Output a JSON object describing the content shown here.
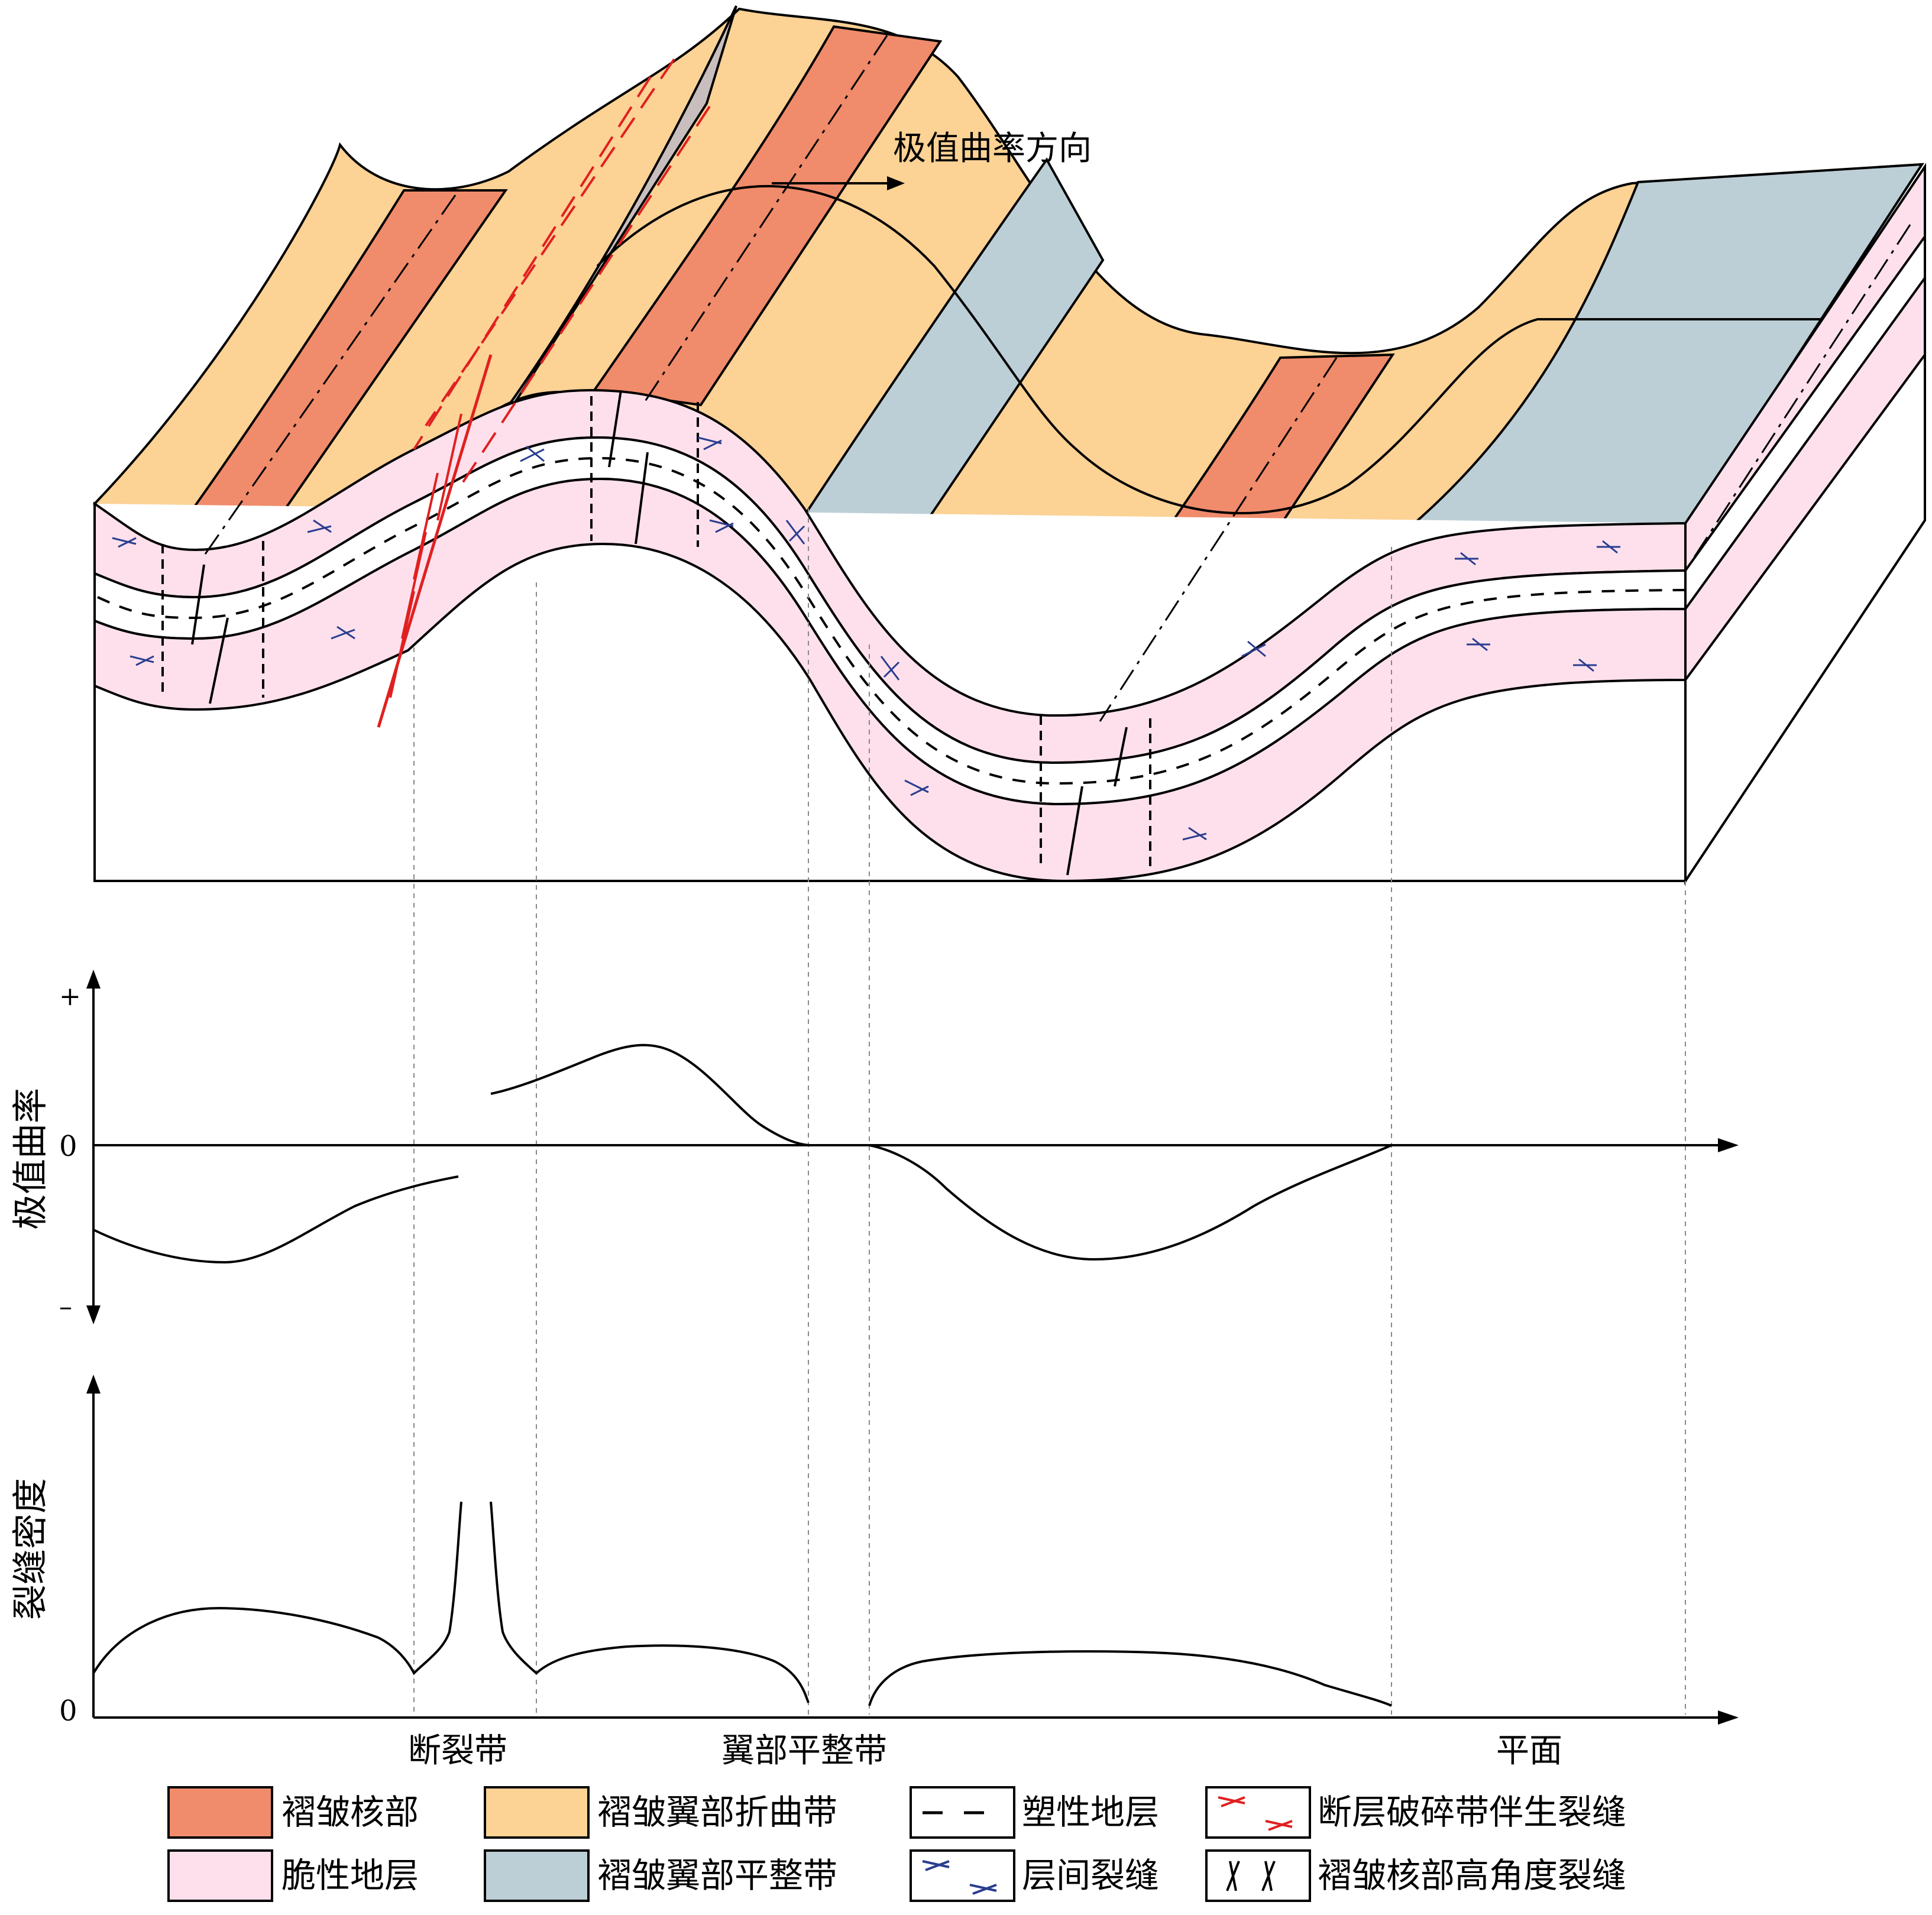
{
  "block": {
    "curvature_direction_label": "极值曲率方向"
  },
  "curvature_plot": {
    "ylabel": "极值曲率",
    "plus": "+",
    "zero": "0",
    "minus": "–"
  },
  "density_plot": {
    "ylabel": "裂缝密度",
    "zero": "0"
  },
  "zones": {
    "fault_zone": "断裂带",
    "flank_flat": "翼部平整带",
    "plane": "平面"
  },
  "legend": [
    {
      "label": "褶皱核部",
      "color": "#f08b6b",
      "kind": "fill"
    },
    {
      "label": "褶皱翼部折曲带",
      "color": "#fcd295",
      "kind": "fill"
    },
    {
      "label": "塑性地层",
      "kind": "dash"
    },
    {
      "label": "断层破碎带伴生裂缝",
      "color": "#e02020",
      "kind": "red-frac"
    },
    {
      "label": "脆性地层",
      "color": "#fde0ec",
      "kind": "fill"
    },
    {
      "label": "褶皱翼部平整带",
      "color": "#bdcfd6",
      "kind": "fill"
    },
    {
      "label": "层间裂缝",
      "color": "#2a3d8f",
      "kind": "blue-frac"
    },
    {
      "label": "褶皱核部高角度裂缝",
      "kind": "high-angle"
    }
  ],
  "colors": {
    "core": "#f08b6b",
    "flank_bend": "#fcd295",
    "flank_flat": "#bdcfd6",
    "brittle": "#fde0ec",
    "fault_plane": "#c9bebe",
    "red_fracture": "#e02020",
    "blue_fracture": "#2a3d8f"
  }
}
